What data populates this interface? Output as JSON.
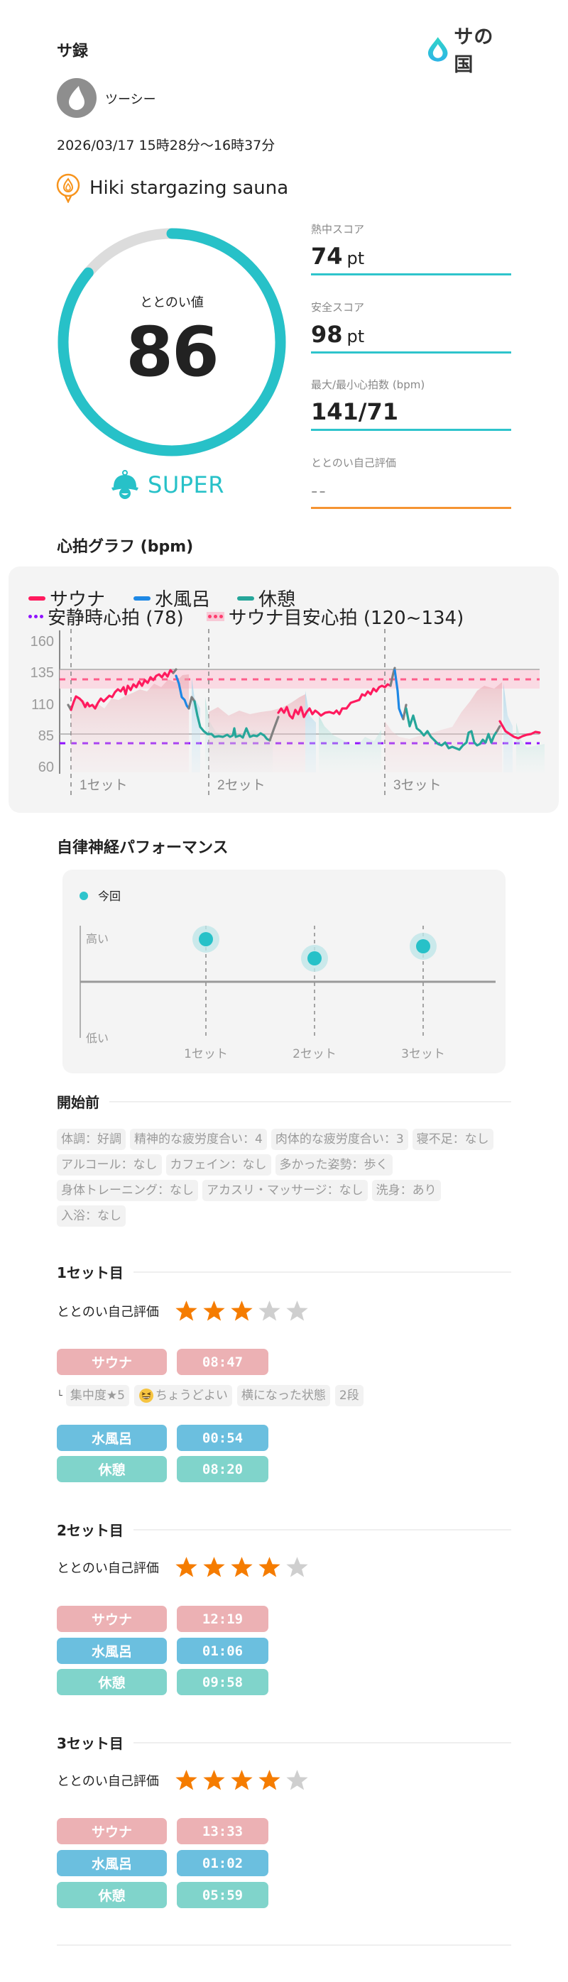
{
  "header": {
    "app_title": "サ録",
    "logo_text": "サの国",
    "brand_color": "#2ec4cc"
  },
  "user": {
    "name": "ツーシー"
  },
  "session": {
    "datetime": "2026/03/17 15時28分〜16時37分",
    "facility_name": "Hiki stargazing sauna"
  },
  "totonoi": {
    "label": "ととのい値",
    "value": "86",
    "percent": 86,
    "rank": "SUPER",
    "ring_color": "#27c1c8",
    "track_color": "#dcdcdc"
  },
  "stats": [
    {
      "label": "熱中スコア",
      "value": "74",
      "unit": "pt"
    },
    {
      "label": "安全スコア",
      "value": "98",
      "unit": "pt"
    },
    {
      "label": "最大/最小心拍数 (bpm)",
      "value": "141/71",
      "unit": ""
    },
    {
      "label": "ととのい自己評価",
      "value": "--",
      "unit": ""
    }
  ],
  "heart_rate": {
    "title": "心拍グラフ (bpm)",
    "legend": {
      "sauna": "サウナ",
      "water": "水風呂",
      "rest": "休憩",
      "resting": "安静時心拍 (78)",
      "target": "サウナ目安心拍 (120~134)"
    },
    "colors": {
      "sauna": "#ff1a5e",
      "water": "#1e88e5",
      "rest": "#26a69a",
      "transition": "#808080",
      "resting": "#9013fe",
      "target": "#ff5c8a"
    },
    "y_ticks": [
      "160",
      "135",
      "110",
      "85",
      "60"
    ],
    "set_labels": [
      "1セット",
      "2セット",
      "3セット"
    ]
  },
  "chart_data": {
    "type": "line",
    "title": "心拍グラフ (bpm)",
    "xlabel": "",
    "ylabel": "bpm",
    "ylim": [
      55,
      162
    ],
    "y_ticks": [
      60,
      85,
      110,
      135,
      160
    ],
    "set_markers": [
      "1セット",
      "2セット",
      "3セット"
    ],
    "reference_lines": [
      {
        "name": "安静時心拍",
        "value": 78
      },
      {
        "name": "サウナ目安心拍 upper",
        "value": 134
      },
      {
        "name": "サウナ目安心拍 mid",
        "value": 127
      },
      {
        "name": "サウナ目安心拍 lower",
        "value": 120
      }
    ],
    "series": [
      {
        "name": "サウナ (set 1)",
        "values": [
          103,
          112,
          110,
          106,
          108,
          105,
          112,
          111,
          114,
          118,
          121,
          116,
          123,
          120,
          126,
          127,
          130,
          133
        ]
      },
      {
        "name": "水風呂 (set 1)",
        "values": [
          131,
          115,
          104
        ]
      },
      {
        "name": "休憩 (set 1)",
        "values": [
          112,
          95,
          88,
          84,
          84,
          83,
          85,
          83,
          87,
          83,
          86,
          82,
          80
        ]
      },
      {
        "name": "サウナ (set 2)",
        "values": [
          100,
          104,
          98,
          94,
          99,
          96,
          98,
          95,
          96,
          97,
          99,
          102,
          106,
          110,
          114,
          118,
          118,
          120,
          123,
          127
        ]
      },
      {
        "name": "水風呂 (set 2)",
        "values": [
          141,
          105,
          92
        ]
      },
      {
        "name": "休憩 (set 2)",
        "values": [
          99,
          89,
          84,
          82,
          78,
          76,
          81,
          80,
          86,
          80,
          83,
          82,
          88
        ]
      },
      {
        "name": "サウナ (set 3)",
        "values": [
          100,
          91,
          87,
          84,
          85,
          84,
          87,
          87,
          86,
          90,
          90,
          93,
          101,
          110,
          115,
          120,
          120,
          122,
          121,
          125
        ]
      },
      {
        "name": "水風呂 (set 3)",
        "values": [
          126,
          100,
          94
        ]
      },
      {
        "name": "休憩 (set 3)",
        "values": [
          98,
          85,
          78,
          74,
          75,
          78,
          80,
          76,
          75,
          79,
          78,
          84
        ]
      }
    ]
  },
  "ans": {
    "title": "自律神経パフォーマンス",
    "legend_label": "今回",
    "y_high": "高い",
    "y_low": "低い",
    "points": [
      {
        "label": "1セット",
        "level": 0.75
      },
      {
        "label": "2セット",
        "level": 0.42
      },
      {
        "label": "3セット",
        "level": 0.62
      }
    ]
  },
  "pre_start": {
    "title": "開始前",
    "chips": [
      "体調：好調",
      "精神的な疲労度合い：4",
      "肉体的な疲労度合い：3",
      "寝不足：なし",
      "アルコール：なし",
      "カフェイン：なし",
      "多かった姿勢：歩く",
      "身体トレーニング：なし",
      "アカスリ・マッサージ：なし",
      "洗身：あり",
      "入浴：なし"
    ]
  },
  "sets": [
    {
      "title": "1セット目",
      "rating_label": "ととのい自己評価",
      "rating": 3,
      "sauna_label": "サウナ",
      "sauna_time": "08:47",
      "sauna_details": [
        "集中度★5",
        "ちょうどよい",
        "横になった状態",
        "2段"
      ],
      "water_label": "水風呂",
      "water_time": "00:54",
      "rest_label": "休憩",
      "rest_time": "08:20"
    },
    {
      "title": "2セット目",
      "rating_label": "ととのい自己評価",
      "rating": 4,
      "sauna_label": "サウナ",
      "sauna_time": "12:19",
      "water_label": "水風呂",
      "water_time": "01:06",
      "rest_label": "休憩",
      "rest_time": "09:58"
    },
    {
      "title": "3セット目",
      "rating_label": "ととのい自己評価",
      "rating": 4,
      "sauna_label": "サウナ",
      "sauna_time": "13:33",
      "water_label": "水風呂",
      "water_time": "01:02",
      "rest_label": "休憩",
      "rest_time": "05:59"
    }
  ],
  "colors": {
    "star_on": "#f57c00",
    "star_off": "#cfcfcf",
    "sauna_pill": "#ecb1b4",
    "water_pill": "#6bbfdf",
    "rest_pill": "#80d4cb"
  }
}
